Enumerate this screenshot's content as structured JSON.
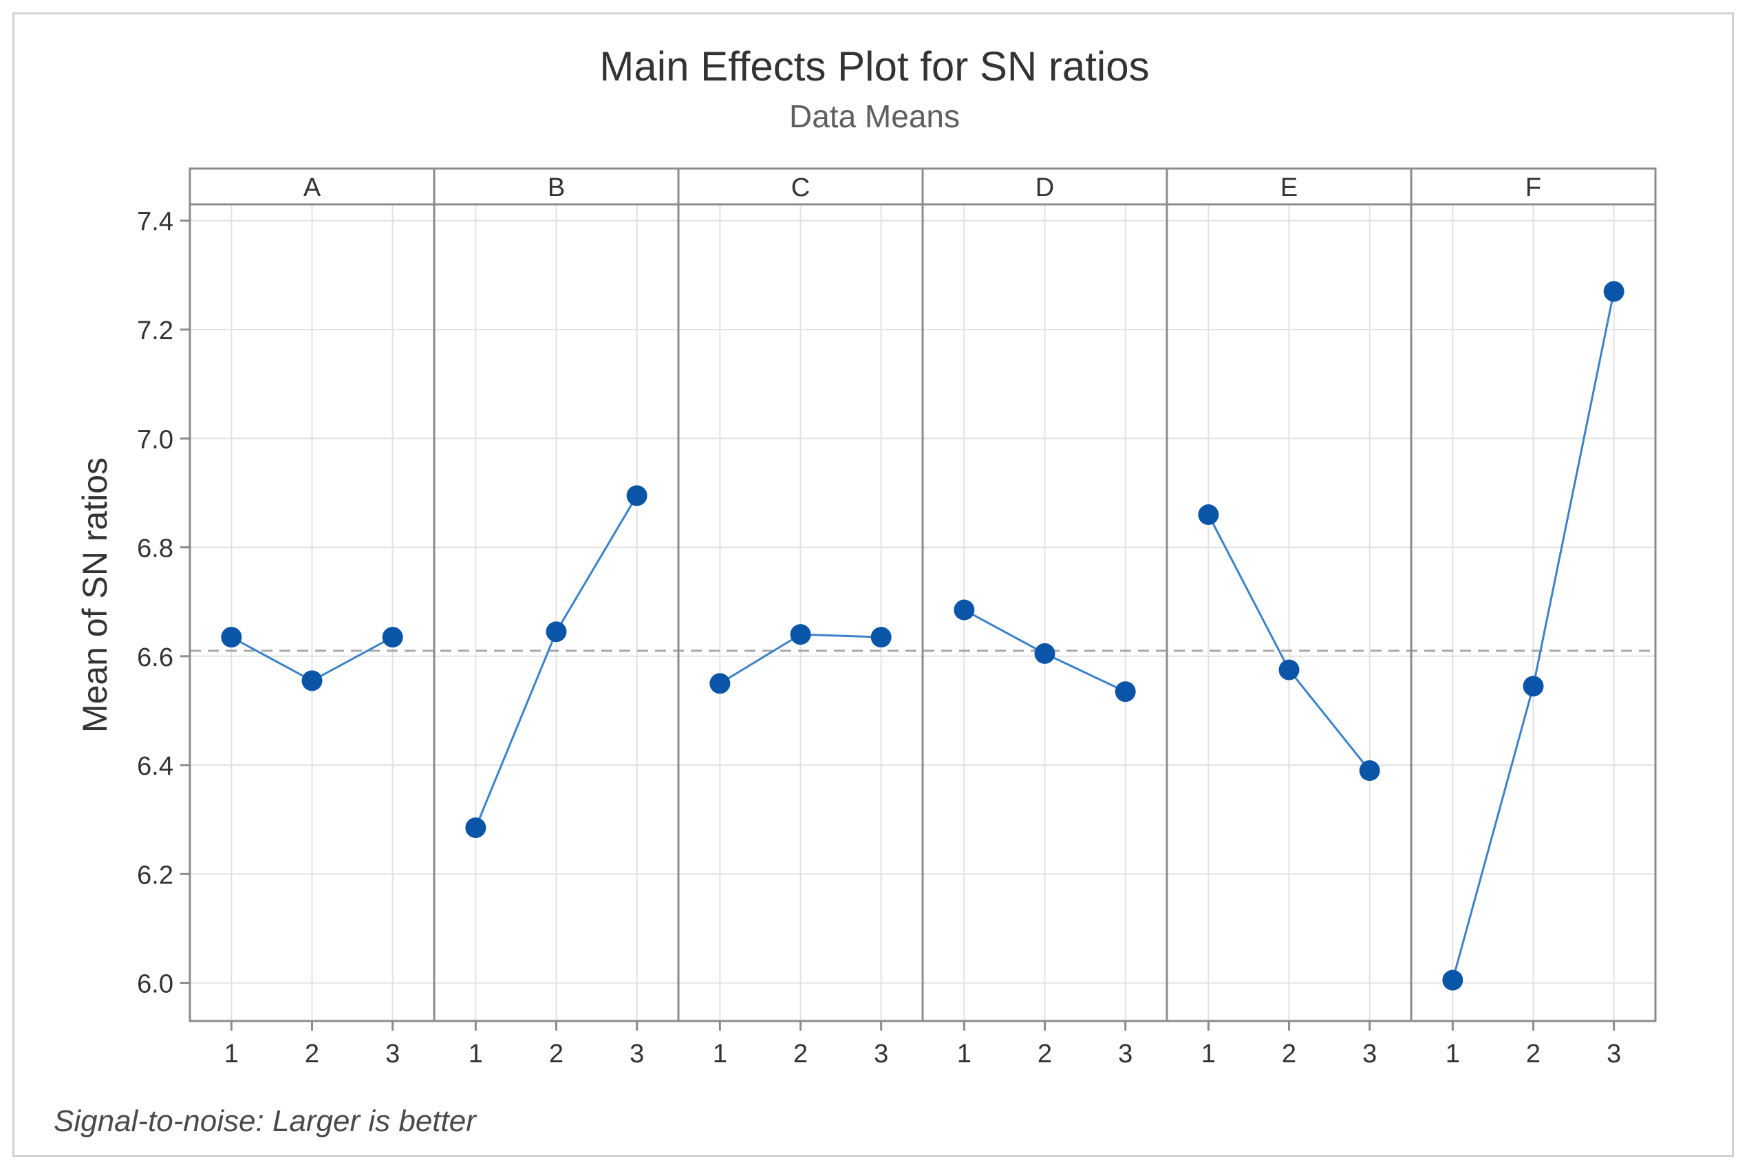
{
  "title": "Main Effects Plot for SN ratios",
  "subtitle": "Data Means",
  "footnote": "Signal-to-noise: Larger is better",
  "colors": {
    "series": "#0a55a8",
    "line": "#3c82c8",
    "reference": "#a8a8a8",
    "grid": "#e2e2e2",
    "axis": "#8c8c8c",
    "text": "#333333"
  },
  "chart_data": {
    "type": "line",
    "title": "Main Effects Plot for SN ratios",
    "subtitle": "Data Means",
    "xlabel": "",
    "ylabel": "Mean of SN ratios",
    "ylim": [
      5.93,
      7.43
    ],
    "yticks": [
      6.0,
      6.2,
      6.4,
      6.6,
      6.8,
      7.0,
      7.2,
      7.4
    ],
    "ytick_labels": [
      "6.0",
      "6.2",
      "6.4",
      "6.6",
      "6.8",
      "7.0",
      "7.2",
      "7.4"
    ],
    "levels": [
      "1",
      "2",
      "3"
    ],
    "reference_line": 6.61,
    "grid": true,
    "factors": [
      {
        "name": "A",
        "values": [
          6.635,
          6.555,
          6.635
        ]
      },
      {
        "name": "B",
        "values": [
          6.285,
          6.645,
          6.895
        ]
      },
      {
        "name": "C",
        "values": [
          6.55,
          6.64,
          6.635
        ]
      },
      {
        "name": "D",
        "values": [
          6.685,
          6.605,
          6.535
        ]
      },
      {
        "name": "E",
        "values": [
          6.86,
          6.575,
          6.39
        ]
      },
      {
        "name": "F",
        "values": [
          6.005,
          6.545,
          7.27
        ]
      }
    ]
  }
}
